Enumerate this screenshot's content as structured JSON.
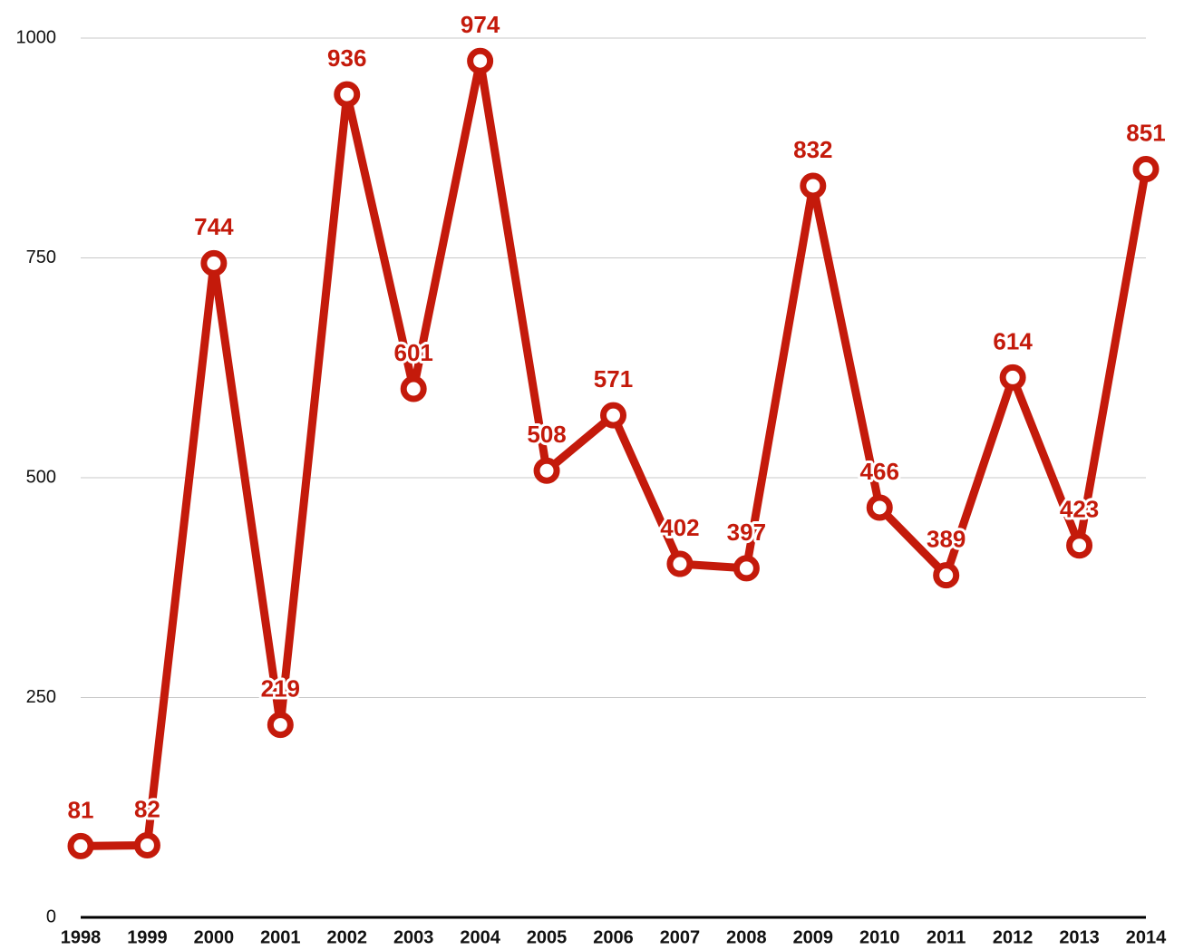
{
  "chart_data": {
    "type": "line",
    "categories": [
      "1998",
      "1999",
      "2000",
      "2001",
      "2002",
      "2003",
      "2004",
      "2005",
      "2006",
      "2007",
      "2008",
      "2009",
      "2010",
      "2011",
      "2012",
      "2013",
      "2014"
    ],
    "series": [
      {
        "color": "#c41a0b",
        "values": [
          81,
          82,
          744,
          219,
          936,
          601,
          974,
          508,
          571,
          402,
          397,
          832,
          466,
          389,
          614,
          423,
          851
        ]
      }
    ],
    "ylim": [
      0,
      1000
    ],
    "yticks": [
      0,
      250,
      500,
      750,
      1000
    ],
    "grid": true
  }
}
